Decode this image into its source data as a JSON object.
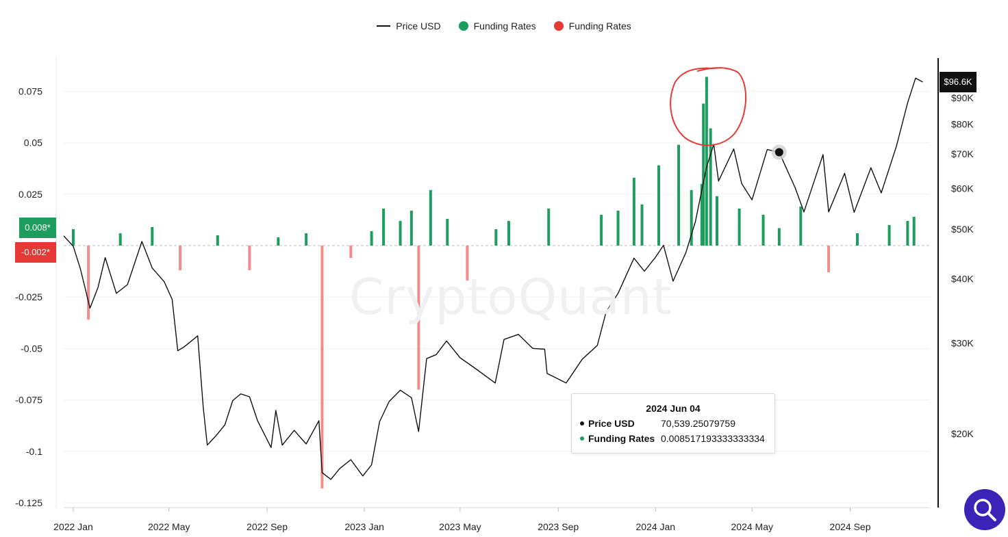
{
  "legend": {
    "price_label": "Price USD",
    "funding_pos_label": "Funding Rates",
    "funding_neg_label": "Funding Rates"
  },
  "watermark": "CryptoQuant",
  "tooltip": {
    "date": "2024 Jun 04",
    "price_label": "Price USD",
    "price_value": "70,539.25079759",
    "funding_label": "Funding Rates",
    "funding_value": "0.008517193333333334"
  },
  "badges": {
    "funding_pos": "0.008*",
    "funding_neg": "-0.002*",
    "price_current": "$96.6K"
  },
  "colors": {
    "price_line": "#111111",
    "funding_positive": "#1e9e5e",
    "funding_negative": "#f08c8c",
    "badge_green": "#1e9e5e",
    "badge_red": "#e53935",
    "search_button": "#3a23b6"
  },
  "icons": {
    "search_button": "search-icon"
  },
  "chart_data": {
    "type": "line",
    "x_ticks": [
      "2022 Jan",
      "2022 May",
      "2022 Sep",
      "2023 Jan",
      "2023 May",
      "2023 Sep",
      "2024 Jan",
      "2024 May",
      "2024 Sep"
    ],
    "y_left_ticks": [
      "0.075",
      "0.05",
      "0.025",
      "-0.025",
      "-0.05",
      "-0.075",
      "-0.1",
      "-0.125"
    ],
    "y_left_values": [
      0.075,
      0.05,
      0.025,
      -0.025,
      -0.05,
      -0.075,
      -0.1,
      -0.125
    ],
    "y_left_range": [
      -0.125,
      0.0875
    ],
    "y_right_ticks": [
      "$90K",
      "$80K",
      "$70K",
      "$60K",
      "$50K",
      "$40K",
      "$30K",
      "$20K"
    ],
    "y_right_values": [
      90000,
      80000,
      70000,
      60000,
      50000,
      40000,
      30000,
      20000
    ],
    "y_right_scale": "log",
    "x_range": [
      "2021-12-20",
      "2024-12-10"
    ],
    "series": [
      {
        "name": "Price USD",
        "type": "line",
        "points": [
          [
            "2021-12-20",
            48500
          ],
          [
            "2022-01-01",
            46300
          ],
          [
            "2022-01-10",
            41800
          ],
          [
            "2022-01-22",
            35100
          ],
          [
            "2022-02-01",
            38500
          ],
          [
            "2022-02-10",
            44000
          ],
          [
            "2022-02-24",
            37500
          ],
          [
            "2022-03-10",
            39000
          ],
          [
            "2022-03-28",
            47300
          ],
          [
            "2022-04-10",
            42000
          ],
          [
            "2022-04-25",
            39500
          ],
          [
            "2022-05-05",
            36500
          ],
          [
            "2022-05-12",
            29000
          ],
          [
            "2022-05-20",
            29500
          ],
          [
            "2022-06-06",
            31000
          ],
          [
            "2022-06-13",
            22500
          ],
          [
            "2022-06-18",
            19000
          ],
          [
            "2022-06-30",
            19900
          ],
          [
            "2022-07-10",
            20800
          ],
          [
            "2022-07-20",
            23200
          ],
          [
            "2022-07-30",
            23900
          ],
          [
            "2022-08-10",
            23600
          ],
          [
            "2022-08-20",
            21200
          ],
          [
            "2022-09-06",
            18800
          ],
          [
            "2022-09-12",
            22200
          ],
          [
            "2022-09-20",
            19000
          ],
          [
            "2022-10-05",
            20300
          ],
          [
            "2022-10-20",
            19100
          ],
          [
            "2022-11-05",
            21200
          ],
          [
            "2022-11-09",
            16800
          ],
          [
            "2022-11-20",
            16300
          ],
          [
            "2022-12-01",
            17100
          ],
          [
            "2022-12-15",
            17800
          ],
          [
            "2022-12-30",
            16550
          ],
          [
            "2023-01-10",
            17400
          ],
          [
            "2023-01-20",
            21100
          ],
          [
            "2023-02-01",
            23100
          ],
          [
            "2023-02-15",
            24300
          ],
          [
            "2023-03-01",
            23500
          ],
          [
            "2023-03-10",
            20200
          ],
          [
            "2023-03-20",
            28000
          ],
          [
            "2023-04-01",
            28500
          ],
          [
            "2023-04-14",
            30300
          ],
          [
            "2023-05-01",
            28100
          ],
          [
            "2023-05-20",
            26800
          ],
          [
            "2023-06-14",
            25100
          ],
          [
            "2023-06-25",
            30500
          ],
          [
            "2023-07-13",
            31200
          ],
          [
            "2023-07-31",
            29300
          ],
          [
            "2023-08-15",
            29200
          ],
          [
            "2023-08-18",
            26200
          ],
          [
            "2023-09-11",
            25100
          ],
          [
            "2023-10-01",
            27900
          ],
          [
            "2023-10-20",
            29700
          ],
          [
            "2023-10-31",
            34500
          ],
          [
            "2023-11-15",
            37500
          ],
          [
            "2023-12-05",
            43900
          ],
          [
            "2023-12-18",
            41400
          ],
          [
            "2024-01-01",
            44100
          ],
          [
            "2024-01-11",
            46500
          ],
          [
            "2024-01-23",
            39600
          ],
          [
            "2024-02-08",
            45000
          ],
          [
            "2024-02-20",
            51700
          ],
          [
            "2024-03-05",
            66000
          ],
          [
            "2024-03-14",
            73100
          ],
          [
            "2024-03-20",
            62000
          ],
          [
            "2024-04-08",
            71600
          ],
          [
            "2024-04-18",
            61300
          ],
          [
            "2024-05-01",
            57000
          ],
          [
            "2024-05-20",
            71400
          ],
          [
            "2024-06-04",
            70539
          ],
          [
            "2024-06-24",
            60200
          ],
          [
            "2024-07-05",
            54000
          ],
          [
            "2024-07-29",
            69800
          ],
          [
            "2024-08-05",
            54000
          ],
          [
            "2024-08-25",
            64200
          ],
          [
            "2024-09-06",
            53900
          ],
          [
            "2024-09-27",
            65800
          ],
          [
            "2024-10-10",
            58800
          ],
          [
            "2024-10-29",
            72500
          ],
          [
            "2024-11-12",
            88000
          ],
          [
            "2024-11-22",
            98300
          ],
          [
            "2024-12-01",
            96600
          ]
        ]
      },
      {
        "name": "Funding Rates",
        "type": "bar",
        "points": [
          [
            "2022-01-01",
            0.008
          ],
          [
            "2022-01-20",
            -0.036
          ],
          [
            "2022-03-01",
            0.006
          ],
          [
            "2022-04-10",
            0.009
          ],
          [
            "2022-05-15",
            -0.012
          ],
          [
            "2022-07-01",
            0.005
          ],
          [
            "2022-08-10",
            -0.012
          ],
          [
            "2022-09-15",
            0.004
          ],
          [
            "2022-10-20",
            0.006
          ],
          [
            "2022-11-09",
            -0.118
          ],
          [
            "2022-12-15",
            -0.006
          ],
          [
            "2023-01-10",
            0.007
          ],
          [
            "2023-01-25",
            0.018
          ],
          [
            "2023-02-15",
            0.012
          ],
          [
            "2023-03-01",
            0.017
          ],
          [
            "2023-03-10",
            -0.07
          ],
          [
            "2023-03-25",
            0.027
          ],
          [
            "2023-04-15",
            0.013
          ],
          [
            "2023-05-10",
            -0.017
          ],
          [
            "2023-06-15",
            0.008
          ],
          [
            "2023-07-01",
            0.012
          ],
          [
            "2023-08-20",
            0.018
          ],
          [
            "2023-10-25",
            0.015
          ],
          [
            "2023-11-15",
            0.017
          ],
          [
            "2023-12-05",
            0.033
          ],
          [
            "2023-12-15",
            0.02
          ],
          [
            "2024-01-05",
            0.039
          ],
          [
            "2024-01-30",
            0.049
          ],
          [
            "2024-02-15",
            0.027
          ],
          [
            "2024-02-28",
            0.03
          ],
          [
            "2024-03-01",
            0.069
          ],
          [
            "2024-03-05",
            0.082
          ],
          [
            "2024-03-10",
            0.057
          ],
          [
            "2024-03-18",
            0.024
          ],
          [
            "2024-04-15",
            0.018
          ],
          [
            "2024-05-15",
            0.015
          ],
          [
            "2024-06-04",
            0.0085
          ],
          [
            "2024-07-01",
            0.019
          ],
          [
            "2024-08-05",
            -0.013
          ],
          [
            "2024-09-10",
            0.006
          ],
          [
            "2024-10-20",
            0.01
          ],
          [
            "2024-11-12",
            0.012
          ],
          [
            "2024-11-20",
            0.014
          ]
        ]
      }
    ],
    "current_values": {
      "funding_positive": 0.008,
      "funding_negative": -0.002,
      "price": 96600
    },
    "hover_point": {
      "date": "2024-06-04",
      "price": 70539.25079759
    }
  }
}
